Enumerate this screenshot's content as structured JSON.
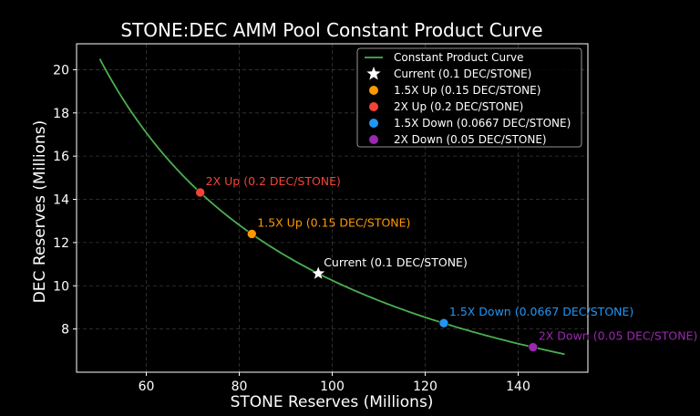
{
  "chart_data": {
    "type": "line",
    "title": "STONE:DEC AMM Pool Constant Product Curve",
    "xlabel": "STONE Reserves (Millions)",
    "ylabel": "DEC Reserves (Millions)",
    "xlim": [
      45,
      155
    ],
    "ylim": [
      6.0,
      21.2
    ],
    "xticks": [
      60,
      80,
      100,
      120,
      140
    ],
    "yticks": [
      8,
      10,
      12,
      14,
      16,
      18,
      20
    ],
    "grid": true,
    "legend_position": "top-right",
    "curve": {
      "name": "Constant Product Curve",
      "k": 1025,
      "x_start": 50,
      "x_end": 150,
      "color": "#4caf50"
    },
    "points": [
      {
        "legend": "Current (0.1 DEC/STONE)",
        "annotation": "Current (0.1 DEC/STONE)",
        "x": 97,
        "y": 10.57,
        "marker": "star",
        "color": "#ffffff"
      },
      {
        "legend": "1.5X Up (0.15 DEC/STONE)",
        "annotation": "1.5X Up (0.15 DEC/STONE)",
        "x": 82.7,
        "y": 12.4,
        "marker": "circle",
        "color": "#ff9800"
      },
      {
        "legend": "2X Up (0.2 DEC/STONE)",
        "annotation": "2X Up (0.2 DEC/STONE)",
        "x": 71.6,
        "y": 14.32,
        "marker": "circle",
        "color": "#f44336"
      },
      {
        "legend": "1.5X Down (0.0667 DEC/STONE)",
        "annotation": "1.5X Down (0.0667 DEC/STONE)",
        "x": 124,
        "y": 8.27,
        "marker": "circle",
        "color": "#2196f3"
      },
      {
        "legend": "2X Down (0.05 DEC/STONE)",
        "annotation": "2X Down (0.05 DEC/STONE)",
        "x": 143.2,
        "y": 7.16,
        "marker": "circle",
        "color": "#9c27b0"
      }
    ]
  }
}
